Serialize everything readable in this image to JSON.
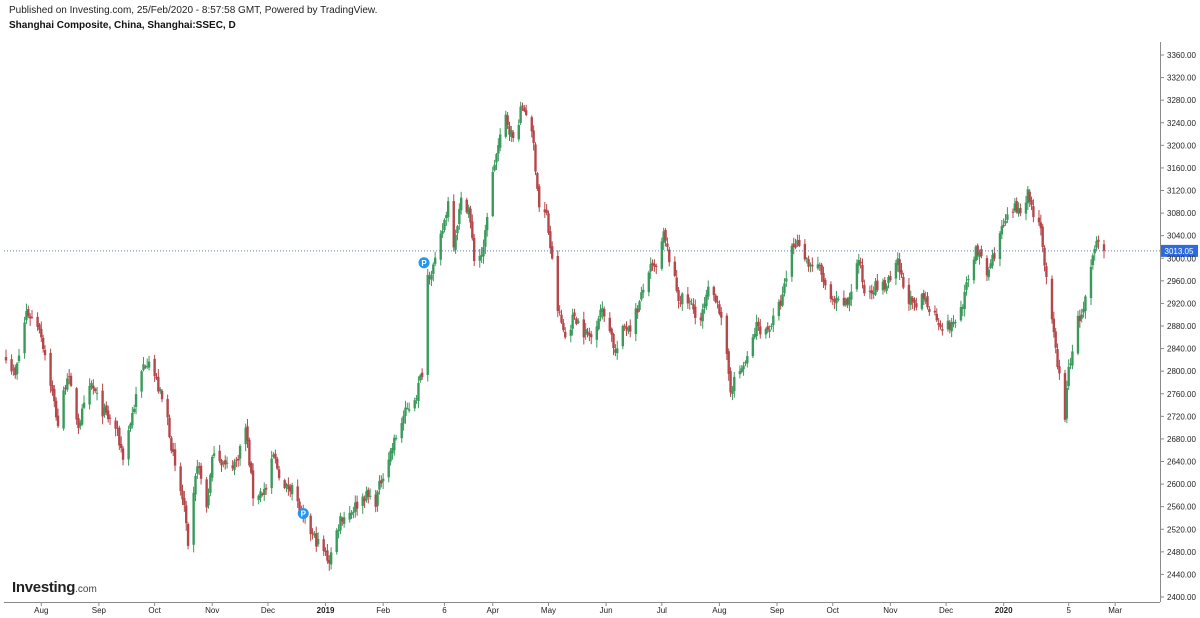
{
  "header": {
    "published": "Published on Investing.com, 25/Feb/2020 - 8:57:58 GMT, Powered by TradingView.",
    "title": "Shanghai Composite, China, Shanghai:SSEC, D"
  },
  "logo": {
    "brand": "Investing",
    "suffix": ".com"
  },
  "colors": {
    "up": "#3a9a5c",
    "down": "#b5474b",
    "last_price_bg": "#2d6cdf",
    "marker": "#2196f3",
    "dotted_line": "#5b7fb5"
  },
  "chart_data": {
    "type": "candlestick",
    "symbol": "Shanghai Composite",
    "ylim": [
      2400,
      3360
    ],
    "y_ticks": [
      3360,
      3320,
      3280,
      3240,
      3200,
      3160,
      3120,
      3080,
      3040,
      3000,
      2960,
      2920,
      2880,
      2840,
      2800,
      2760,
      2720,
      2680,
      2640,
      2600,
      2560,
      2520,
      2480,
      2440,
      2400
    ],
    "y_tick_labels": [
      "3360.00",
      "3320.00",
      "3280.00",
      "3240.00",
      "3200.00",
      "3160.00",
      "3120.00",
      "3080.00",
      "3040.00",
      "3000.00",
      "2960.00",
      "2920.00",
      "2880.00",
      "2840.00",
      "2800.00",
      "2760.00",
      "2720.00",
      "2680.00",
      "2640.00",
      "2600.00",
      "2560.00",
      "2520.00",
      "2480.00",
      "2440.00",
      "2400.00"
    ],
    "x_ticks": [
      {
        "label": "Aug",
        "bold": false,
        "date": "2018-08-01"
      },
      {
        "label": "Sep",
        "bold": false,
        "date": "2018-09-01"
      },
      {
        "label": "Oct",
        "bold": false,
        "date": "2018-10-01"
      },
      {
        "label": "Nov",
        "bold": false,
        "date": "2018-11-01"
      },
      {
        "label": "Dec",
        "bold": false,
        "date": "2018-12-01"
      },
      {
        "label": "2019",
        "bold": true,
        "date": "2019-01-01"
      },
      {
        "label": "Feb",
        "bold": false,
        "date": "2019-02-01"
      },
      {
        "label": "6",
        "bold": false,
        "date": "2019-03-06"
      },
      {
        "label": "Apr",
        "bold": false,
        "date": "2019-04-01"
      },
      {
        "label": "May",
        "bold": false,
        "date": "2019-05-01"
      },
      {
        "label": "Jun",
        "bold": false,
        "date": "2019-06-01"
      },
      {
        "label": "Jul",
        "bold": false,
        "date": "2019-07-01"
      },
      {
        "label": "Aug",
        "bold": false,
        "date": "2019-08-01"
      },
      {
        "label": "Sep",
        "bold": false,
        "date": "2019-09-01"
      },
      {
        "label": "Oct",
        "bold": false,
        "date": "2019-10-01"
      },
      {
        "label": "Nov",
        "bold": false,
        "date": "2019-11-01"
      },
      {
        "label": "Dec",
        "bold": false,
        "date": "2019-12-01"
      },
      {
        "label": "2020",
        "bold": true,
        "date": "2020-01-01"
      },
      {
        "label": "5",
        "bold": false,
        "date": "2020-02-05"
      },
      {
        "label": "Mar",
        "bold": false,
        "date": "2020-03-01"
      }
    ],
    "last_price": 3013.05,
    "last_price_label": "3013.05",
    "markers": [
      {
        "label": "P",
        "date": "2018-12-20",
        "value": 2548
      },
      {
        "label": "P",
        "date": "2019-02-23",
        "value": 2992
      }
    ],
    "close_path": [
      [
        "2018-07-13",
        2830
      ],
      [
        "2018-07-18",
        2790
      ],
      [
        "2018-07-24",
        2905
      ],
      [
        "2018-07-31",
        2880
      ],
      [
        "2018-08-06",
        2780
      ],
      [
        "2018-08-10",
        2705
      ],
      [
        "2018-08-15",
        2795
      ],
      [
        "2018-08-21",
        2705
      ],
      [
        "2018-08-28",
        2775
      ],
      [
        "2018-09-03",
        2730
      ],
      [
        "2018-09-10",
        2700
      ],
      [
        "2018-09-14",
        2650
      ],
      [
        "2018-09-19",
        2725
      ],
      [
        "2018-09-25",
        2810
      ],
      [
        "2018-09-28",
        2825
      ],
      [
        "2018-10-08",
        2715
      ],
      [
        "2018-10-12",
        2625
      ],
      [
        "2018-10-17",
        2560
      ],
      [
        "2018-10-19",
        2480
      ],
      [
        "2018-10-24",
        2640
      ],
      [
        "2018-10-29",
        2560
      ],
      [
        "2018-11-02",
        2665
      ],
      [
        "2018-11-08",
        2630
      ],
      [
        "2018-11-14",
        2640
      ],
      [
        "2018-11-19",
        2700
      ],
      [
        "2018-11-23",
        2580
      ],
      [
        "2018-11-30",
        2590
      ],
      [
        "2018-12-04",
        2650
      ],
      [
        "2018-12-10",
        2590
      ],
      [
        "2018-12-14",
        2600
      ],
      [
        "2018-12-19",
        2540
      ],
      [
        "2018-12-25",
        2510
      ],
      [
        "2019-01-03",
        2465
      ],
      [
        "2019-01-09",
        2540
      ],
      [
        "2019-01-14",
        2550
      ],
      [
        "2019-01-22",
        2580
      ],
      [
        "2019-01-28",
        2570
      ],
      [
        "2019-02-01",
        2620
      ],
      [
        "2019-02-12",
        2720
      ],
      [
        "2019-02-19",
        2760
      ],
      [
        "2019-02-22",
        2800
      ],
      [
        "2019-02-25",
        2970
      ],
      [
        "2019-03-01",
        2990
      ],
      [
        "2019-03-05",
        3050
      ],
      [
        "2019-03-08",
        3100
      ],
      [
        "2019-03-11",
        3030
      ],
      [
        "2019-03-15",
        3100
      ],
      [
        "2019-03-19",
        3090
      ],
      [
        "2019-03-22",
        3000
      ],
      [
        "2019-03-27",
        3010
      ],
      [
        "2019-03-29",
        3080
      ],
      [
        "2019-04-02",
        3170
      ],
      [
        "2019-04-08",
        3250
      ],
      [
        "2019-04-12",
        3210
      ],
      [
        "2019-04-17",
        3270
      ],
      [
        "2019-04-19",
        3260
      ],
      [
        "2019-04-23",
        3200
      ],
      [
        "2019-04-26",
        3090
      ],
      [
        "2019-04-30",
        3075
      ],
      [
        "2019-05-06",
        2910
      ],
      [
        "2019-05-10",
        2860
      ],
      [
        "2019-05-15",
        2900
      ],
      [
        "2019-05-20",
        2870
      ],
      [
        "2019-05-24",
        2860
      ],
      [
        "2019-05-29",
        2910
      ],
      [
        "2019-06-03",
        2880
      ],
      [
        "2019-06-06",
        2830
      ],
      [
        "2019-06-11",
        2880
      ],
      [
        "2019-06-14",
        2880
      ],
      [
        "2019-06-19",
        2920
      ],
      [
        "2019-06-24",
        2980
      ],
      [
        "2019-06-28",
        2980
      ],
      [
        "2019-07-02",
        3040
      ],
      [
        "2019-07-05",
        3000
      ],
      [
        "2019-07-10",
        2930
      ],
      [
        "2019-07-16",
        2920
      ],
      [
        "2019-07-22",
        2890
      ],
      [
        "2019-07-26",
        2940
      ],
      [
        "2019-07-31",
        2930
      ],
      [
        "2019-08-05",
        2820
      ],
      [
        "2019-08-07",
        2770
      ],
      [
        "2019-08-12",
        2800
      ],
      [
        "2019-08-16",
        2820
      ],
      [
        "2019-08-21",
        2880
      ],
      [
        "2019-08-26",
        2870
      ],
      [
        "2019-08-30",
        2890
      ],
      [
        "2019-09-04",
        2930
      ],
      [
        "2019-09-09",
        3020
      ],
      [
        "2019-09-13",
        3030
      ],
      [
        "2019-09-18",
        2990
      ],
      [
        "2019-09-24",
        2980
      ],
      [
        "2019-09-30",
        2920
      ],
      [
        "2019-10-09",
        2920
      ],
      [
        "2019-10-15",
        3000
      ],
      [
        "2019-10-18",
        2940
      ],
      [
        "2019-10-23",
        2950
      ],
      [
        "2019-10-29",
        2950
      ],
      [
        "2019-11-01",
        2960
      ],
      [
        "2019-11-05",
        2990
      ],
      [
        "2019-11-08",
        2950
      ],
      [
        "2019-11-14",
        2910
      ],
      [
        "2019-11-19",
        2930
      ],
      [
        "2019-11-25",
        2900
      ],
      [
        "2019-11-29",
        2880
      ],
      [
        "2019-12-04",
        2880
      ],
      [
        "2019-12-09",
        2910
      ],
      [
        "2019-12-13",
        2960
      ],
      [
        "2019-12-17",
        3020
      ],
      [
        "2019-12-23",
        2970
      ],
      [
        "2019-12-27",
        3010
      ],
      [
        "2019-12-31",
        3050
      ],
      [
        "2020-01-06",
        3085
      ],
      [
        "2020-01-10",
        3090
      ],
      [
        "2020-01-14",
        3115
      ],
      [
        "2020-01-17",
        3080
      ],
      [
        "2020-01-21",
        3060
      ],
      [
        "2020-01-23",
        2980
      ],
      [
        "2020-02-03",
        2720
      ],
      [
        "2020-02-05",
        2805
      ],
      [
        "2020-02-10",
        2890
      ],
      [
        "2020-02-13",
        2905
      ],
      [
        "2020-02-17",
        2980
      ],
      [
        "2020-02-20",
        3030
      ],
      [
        "2020-02-24",
        3013
      ]
    ]
  }
}
